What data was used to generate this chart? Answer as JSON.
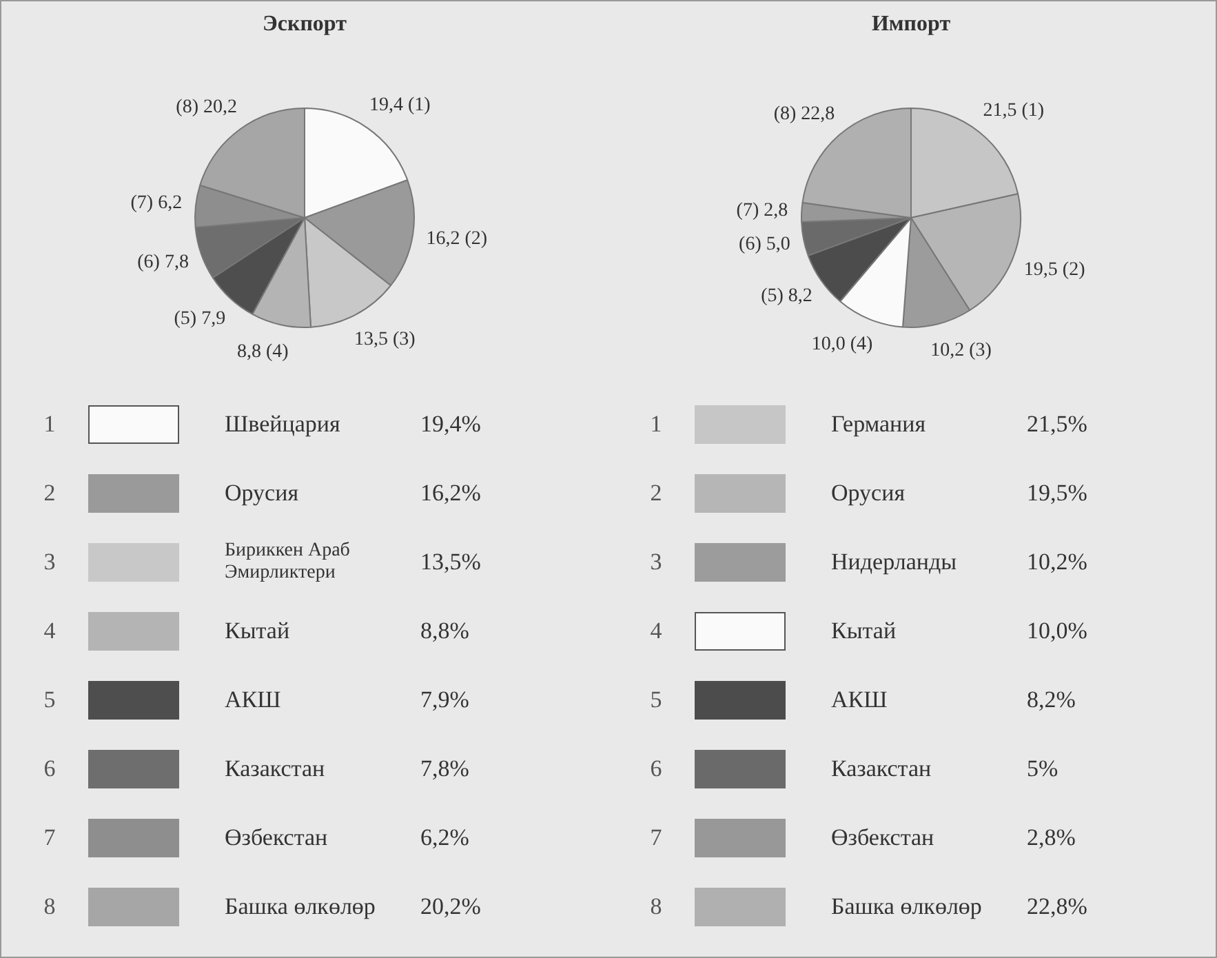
{
  "chart_data": [
    {
      "type": "pie",
      "title": "Эскпорт",
      "categories": [
        "Швейцария",
        "Орусия",
        "Бириккен Араб Эмирликтери",
        "Кытай",
        "АКШ",
        "Казакстан",
        "Өзбекстан",
        "Башка өлкөлөр"
      ],
      "values": [
        19.4,
        16.2,
        13.5,
        8.8,
        7.9,
        7.8,
        6.2,
        20.2
      ],
      "colors": [
        "#fafafa",
        "#9a9a9a",
        "#c8c8c8",
        "#b4b4b4",
        "#4e4e4e",
        "#6e6e6e",
        "#8e8e8e",
        "#a6a6a6"
      ],
      "value_labels": [
        "19,4 (1)",
        "16,2 (2)",
        "13,5 (3)",
        "8,8 (4)",
        "(5) 7,9",
        "(6) 7,8",
        "(7) 6,2",
        "(8) 20,2"
      ],
      "annotations": [
        "1",
        "19,4%",
        "2",
        "16,2%",
        "3",
        "13,5%",
        "4",
        "8,8%",
        "5",
        "7,9%",
        "6",
        "7,8%",
        "7",
        "6,2%",
        "8",
        "20,2%"
      ],
      "legend": "bottom"
    },
    {
      "type": "pie",
      "title": "Импорт",
      "categories": [
        "Германия",
        "Орусия",
        "Нидерланды",
        "Кытай",
        "АКШ",
        "Казакстан",
        "Өзбекстан",
        "Башка өлкөлөр"
      ],
      "values": [
        21.5,
        19.5,
        10.2,
        10.0,
        8.2,
        5.0,
        2.8,
        22.8
      ],
      "colors": [
        "#c6c6c6",
        "#b6b6b6",
        "#9c9c9c",
        "#fafafa",
        "#4c4c4c",
        "#6a6a6a",
        "#989898",
        "#b0b0b0"
      ],
      "value_labels": [
        "21,5 (1)",
        "19,5 (2)",
        "10,2 (3)",
        "10,0 (4)",
        "(5) 8,2",
        "(6) 5,0",
        "(7) 2,8",
        "(8) 22,8"
      ],
      "annotations": [
        "1",
        "21,5%",
        "2",
        "19,5%",
        "3",
        "10,2%",
        "4",
        "10,0%",
        "5",
        "8,2%",
        "6",
        "5%",
        "7",
        "2,8%",
        "8",
        "22,8%"
      ],
      "legend": "bottom"
    }
  ]
}
